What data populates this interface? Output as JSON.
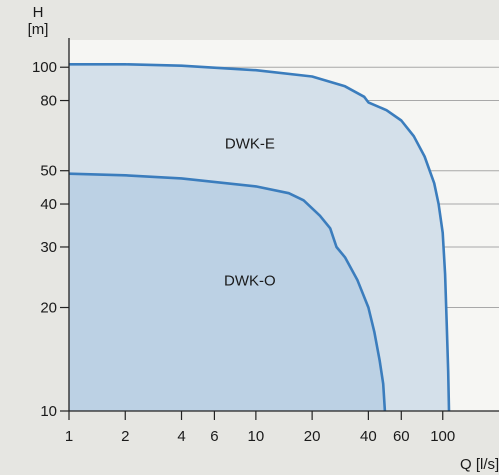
{
  "chart_data": {
    "type": "area",
    "scale": {
      "x": "log",
      "y": "log"
    },
    "xlim": [
      1,
      200
    ],
    "ylim": [
      10,
      120
    ],
    "x_ticks": [
      1,
      2,
      4,
      6,
      10,
      20,
      40,
      60,
      100
    ],
    "x_tick_labels": [
      "1",
      "2",
      "4",
      "6",
      "10",
      "20",
      "40",
      "60",
      "100"
    ],
    "y_ticks": [
      10,
      20,
      30,
      40,
      50,
      80,
      100
    ],
    "y_tick_labels": [
      "10",
      "20",
      "30",
      "40",
      "50",
      "80",
      "100"
    ],
    "y_label": {
      "line1": "H",
      "line2": "[m]"
    },
    "x_label": "Q [l/s]",
    "grid": "horizontal",
    "series": [
      {
        "name": "DWK-E",
        "fill": "#d4e0ea",
        "stroke": "#3b7dbd",
        "points": [
          [
            1,
            102
          ],
          [
            2,
            102
          ],
          [
            4,
            101
          ],
          [
            10,
            98
          ],
          [
            20,
            94
          ],
          [
            30,
            88
          ],
          [
            38,
            82
          ],
          [
            40,
            79
          ],
          [
            50,
            75
          ],
          [
            60,
            70
          ],
          [
            70,
            63
          ],
          [
            80,
            55
          ],
          [
            90,
            46
          ],
          [
            95,
            40
          ],
          [
            100,
            33
          ],
          [
            103,
            25
          ],
          [
            105,
            18
          ],
          [
            107,
            13
          ],
          [
            108,
            10
          ]
        ],
        "label_at": [
          10,
          60
        ]
      },
      {
        "name": "DWK-O",
        "fill": "#bcd1e4",
        "stroke": "#3b7dbd",
        "points": [
          [
            1,
            49
          ],
          [
            2,
            48.5
          ],
          [
            4,
            47.5
          ],
          [
            10,
            45
          ],
          [
            15,
            43
          ],
          [
            18,
            41
          ],
          [
            22,
            37
          ],
          [
            25,
            34
          ],
          [
            27,
            30
          ],
          [
            30,
            28
          ],
          [
            35,
            24
          ],
          [
            40,
            20
          ],
          [
            43,
            17
          ],
          [
            46,
            14
          ],
          [
            48,
            12
          ],
          [
            49,
            10
          ]
        ],
        "label_at": [
          10,
          24
        ]
      }
    ],
    "colors": {
      "background": "#e6e6e2",
      "plot_background": "#f6f6f3",
      "grid": "#a8a8a8",
      "axis": "#222222"
    }
  }
}
